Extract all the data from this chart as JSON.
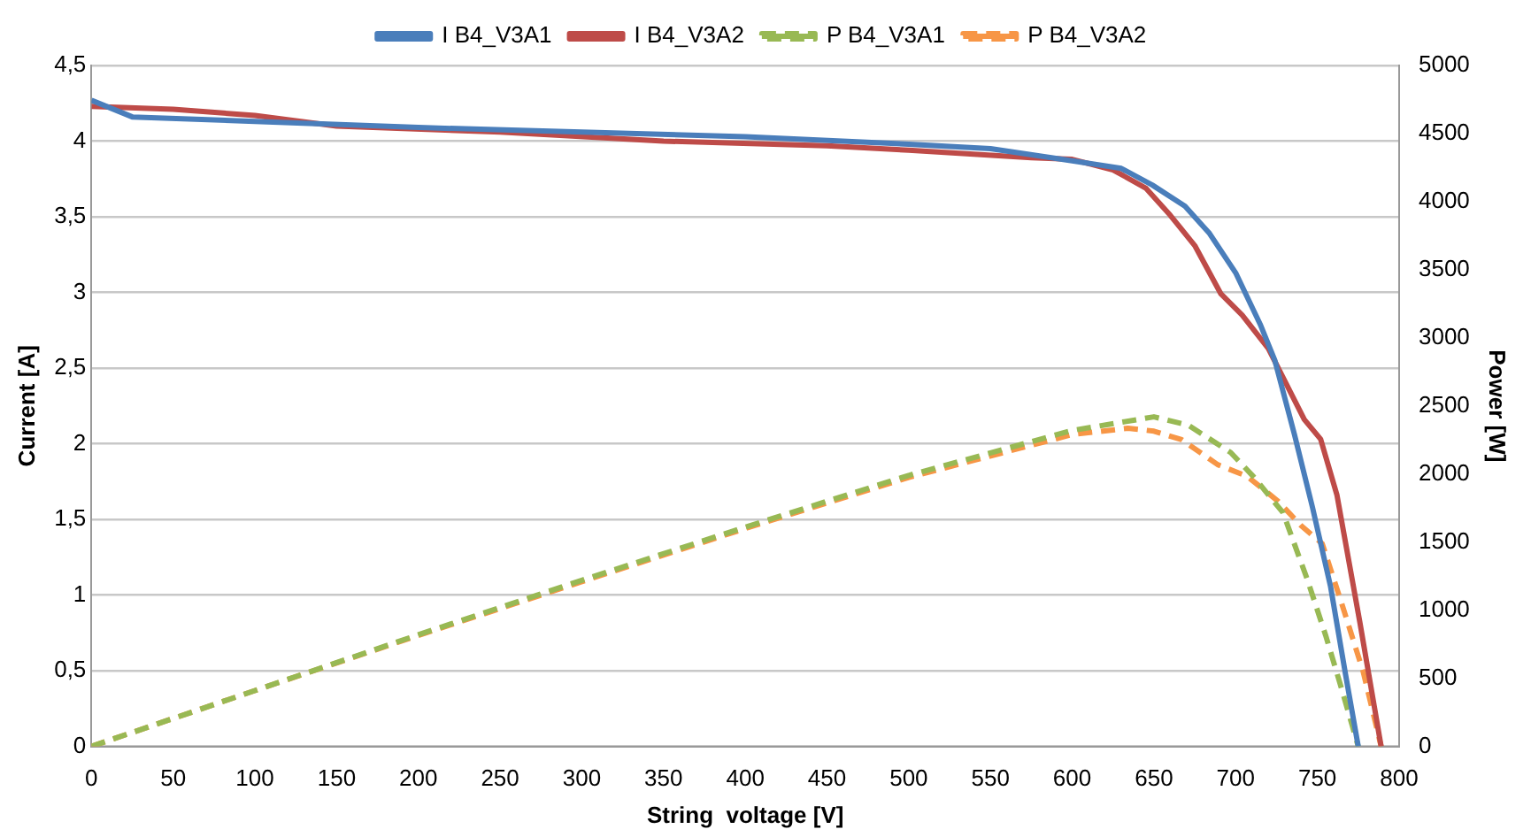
{
  "chart_data": {
    "type": "line",
    "xlabel": "String  voltage [V]",
    "ylabel": "Current [A]",
    "y2label": "Power [W]",
    "xlim": [
      0,
      800
    ],
    "xticks": [
      0,
      50,
      100,
      150,
      200,
      250,
      300,
      350,
      400,
      450,
      500,
      550,
      600,
      650,
      700,
      750,
      800
    ],
    "ylim": [
      0,
      4.5
    ],
    "yticks": [
      0,
      {
        "value": 0.5,
        "label": "0,5"
      },
      1,
      {
        "value": 1.5,
        "label": "1,5"
      },
      2,
      {
        "value": 2.5,
        "label": "2,5"
      },
      3,
      {
        "value": 3.5,
        "label": "3,5"
      },
      4,
      {
        "value": 4.5,
        "label": "4,5"
      }
    ],
    "y2lim": [
      0,
      5000
    ],
    "y2ticks": [
      0,
      500,
      1000,
      1500,
      2000,
      2500,
      3000,
      3500,
      4000,
      4500,
      5000
    ],
    "grid": "y",
    "legend": "top",
    "marker": "none",
    "series": [
      {
        "name": "I B4_V3A1",
        "color": "#4a7ebb",
        "line_style": "solid",
        "x": [
          0,
          25,
          100,
          200,
          300,
          400,
          500,
          550,
          600,
          630,
          649,
          669,
          684,
          700,
          715,
          724,
          736,
          747,
          758,
          767,
          775
        ],
        "values": [
          4.27,
          4.16,
          4.13,
          4.09,
          4.06,
          4.03,
          3.98,
          3.95,
          3.87,
          3.82,
          3.71,
          3.57,
          3.39,
          3.13,
          2.79,
          2.55,
          2.06,
          1.58,
          1.06,
          0.49,
          0
        ]
      },
      {
        "name": "I B4_V3A2",
        "color": "#be4b48",
        "line_style": "solid",
        "x": [
          0,
          50,
          100,
          150,
          250,
          350,
          450,
          500,
          575,
          600,
          625,
          645,
          660,
          675,
          691,
          704,
          720,
          742,
          752,
          762,
          776,
          789
        ],
        "values": [
          4.23,
          4.21,
          4.17,
          4.1,
          4.06,
          4.0,
          3.97,
          3.94,
          3.89,
          3.88,
          3.81,
          3.69,
          3.51,
          3.31,
          2.99,
          2.85,
          2.63,
          2.16,
          2.03,
          1.66,
          0.82,
          0
        ]
      },
      {
        "name": "P B4_V3A1",
        "color": "#98b954",
        "line_style": "dashed",
        "axis": "y2",
        "x": [
          0,
          100,
          200,
          300,
          400,
          500,
          600,
          650,
          671,
          697,
          711,
          729,
          744,
          755,
          765,
          775
        ],
        "values": [
          0,
          410,
          820,
          1220,
          1610,
          1990,
          2320,
          2420,
          2359,
          2158,
          1980,
          1716,
          1220,
          818,
          416,
          0
        ]
      },
      {
        "name": "P B4_V3A2",
        "color": "#f79646",
        "line_style": "dashed",
        "axis": "y2",
        "x": [
          0,
          100,
          200,
          300,
          400,
          500,
          600,
          634,
          650,
          667,
          689,
          707,
          726,
          740,
          753,
          765,
          778,
          789
        ],
        "values": [
          0,
          410,
          815,
          1210,
          1600,
          1975,
          2290,
          2336,
          2315,
          2252,
          2069,
          1984,
          1800,
          1622,
          1488,
          1045,
          550,
          0
        ]
      }
    ]
  }
}
